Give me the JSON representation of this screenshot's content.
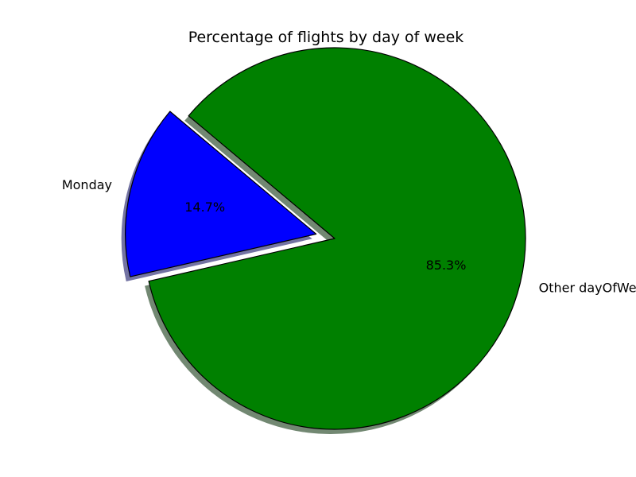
{
  "chart_data": {
    "type": "pie",
    "title": "Percentage of flights by day of week",
    "slices": [
      {
        "label": "Monday",
        "value": 14.7,
        "pct_label": "14.7%",
        "color": "#0000ff",
        "shadow_color": "#7373a3",
        "exploded": true
      },
      {
        "label": "Other dayOfWeek",
        "value": 85.3,
        "pct_label": "85.3%",
        "color": "#008000",
        "shadow_color": "#728872",
        "exploded": false
      }
    ],
    "start_angle_deg": 140,
    "shadow": true,
    "edge_color": "#000000",
    "legend": "none"
  }
}
